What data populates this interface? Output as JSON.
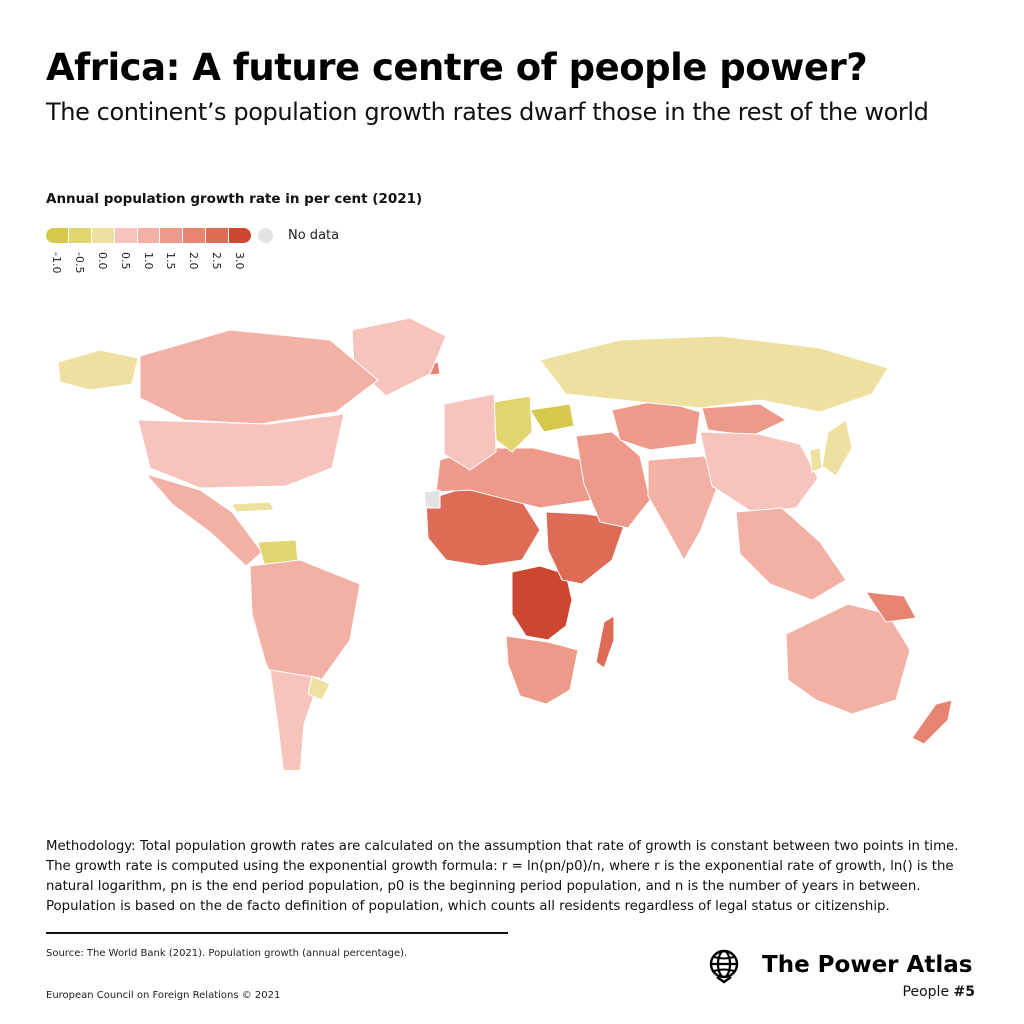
{
  "header": {
    "title": "Africa: A future centre of people power?",
    "subtitle": "The continent’s population growth rates dwarf those in the rest of the world"
  },
  "legend": {
    "title": "Annual population growth rate in per cent (2021)",
    "ticks": [
      "-1.0",
      "-0.5",
      "0.0",
      "0.5",
      "1.0",
      "1.5",
      "2.0",
      "2.5",
      "3.0"
    ],
    "colors": [
      "#d6c84d",
      "#e2d46f",
      "#ede0a0",
      "#f6c4bd",
      "#f3b0a4",
      "#ee9a8a",
      "#e78471",
      "#de6b55",
      "#cc4630"
    ],
    "no_data_label": "No data",
    "no_data_color": "#e3e3e3"
  },
  "chart_data": {
    "type": "choropleth",
    "title": "Africa: A future centre of people power?",
    "subtitle": "The continent’s population growth rates dwarf those in the rest of the world",
    "value_label": "Annual population growth rate in per cent (2021)",
    "scale": {
      "min": -1.0,
      "max": 3.0,
      "step": 0.5
    },
    "regions": [
      {
        "name": "Central Africa",
        "value": 3.0
      },
      {
        "name": "West Africa",
        "value": 2.5
      },
      {
        "name": "East Africa",
        "value": 2.5
      },
      {
        "name": "Southern Africa",
        "value": 1.5
      },
      {
        "name": "North Africa",
        "value": 1.5
      },
      {
        "name": "Madagascar",
        "value": 2.5
      },
      {
        "name": "Middle East",
        "value": 1.5
      },
      {
        "name": "Central Asia",
        "value": 1.5
      },
      {
        "name": "Mongolia",
        "value": 1.5
      },
      {
        "name": "South Asia",
        "value": 1.0
      },
      {
        "name": "China",
        "value": 0.5
      },
      {
        "name": "Japan",
        "value": 0.0
      },
      {
        "name": "Korea",
        "value": 0.0
      },
      {
        "name": "Southeast Asia",
        "value": 1.0
      },
      {
        "name": "Russia",
        "value": 0.0
      },
      {
        "name": "Ukraine",
        "value": -1.0
      },
      {
        "name": "Eastern Europe",
        "value": -0.5
      },
      {
        "name": "Western Europe",
        "value": 0.5
      },
      {
        "name": "Iceland",
        "value": 2.0
      },
      {
        "name": "Greenland",
        "value": 0.5
      },
      {
        "name": "Alaska",
        "value": 0.0
      },
      {
        "name": "Canada",
        "value": 1.0
      },
      {
        "name": "United States",
        "value": 0.5
      },
      {
        "name": "Mexico and Central America",
        "value": 1.0
      },
      {
        "name": "Cuba",
        "value": 0.0
      },
      {
        "name": "Venezuela",
        "value": -0.5
      },
      {
        "name": "South America",
        "value": 1.0
      },
      {
        "name": "Argentina and Chile",
        "value": 0.5
      },
      {
        "name": "Uruguay",
        "value": 0.0
      },
      {
        "name": "Australia",
        "value": 1.0
      },
      {
        "name": "Papua New Guinea",
        "value": 2.0
      },
      {
        "name": "New Zealand",
        "value": 2.0
      },
      {
        "name": "Western Sahara",
        "value": null
      }
    ]
  },
  "methodology": "Methodology: Total population growth rates are calculated on the assumption that rate of growth is constant between two points in time. The growth rate is computed using the exponential growth formula: r = ln(pn/p0)/n, where r is the exponential rate of growth, ln() is the natural logarithm, pn is the end period population, p0 is the beginning period population, and n is the number of years in between. Population is based on the de facto definition of population, which counts all residents regardless of legal status or citizenship.",
  "footer": {
    "source": "Source: The World Bank (2021). Population growth (annual percentage).",
    "copyright": "European Council on Foreign Relations © 2021",
    "brand": "The Power Atlas",
    "series_prefix": "People",
    "series_number": "#5"
  }
}
